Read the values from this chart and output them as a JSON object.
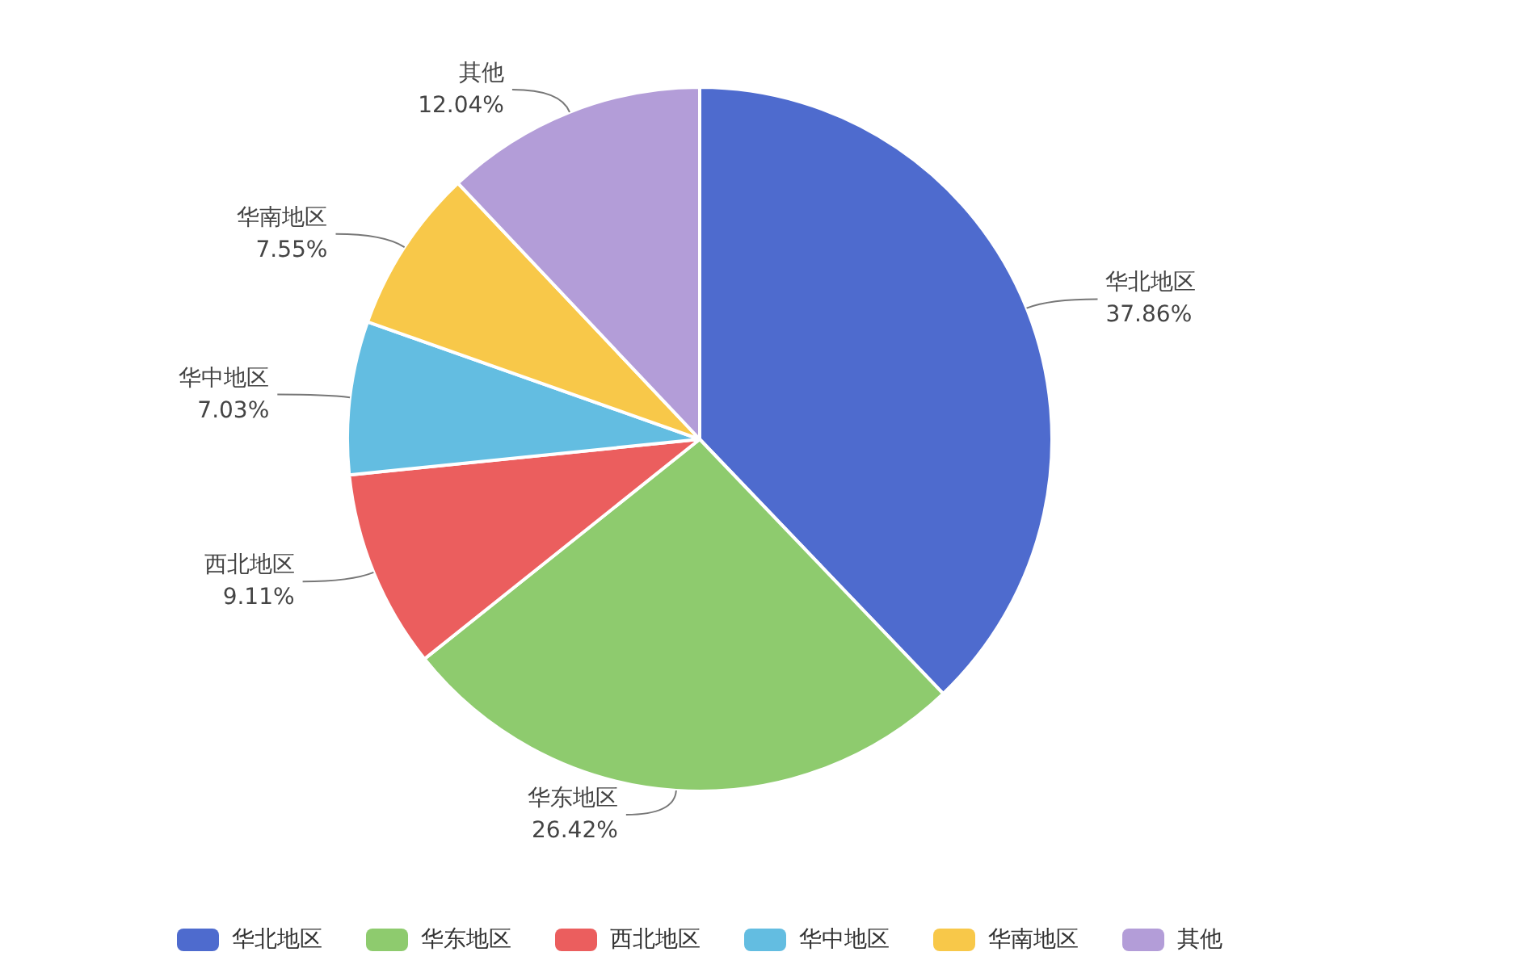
{
  "chart_data": {
    "type": "pie",
    "categories": [
      "华北地区",
      "华东地区",
      "西北地区",
      "华中地区",
      "华南地区",
      "其他"
    ],
    "values": [
      37.86,
      26.42,
      9.11,
      7.03,
      7.55,
      12.04
    ],
    "value_labels": [
      "37.86%",
      "26.42%",
      "9.11%",
      "7.03%",
      "7.55%",
      "12.04%"
    ],
    "colors": [
      "#4e6bce",
      "#8ecb6e",
      "#eb5e5e",
      "#63bde1",
      "#f8c849",
      "#b39dd8"
    ],
    "legend": "bottom"
  }
}
